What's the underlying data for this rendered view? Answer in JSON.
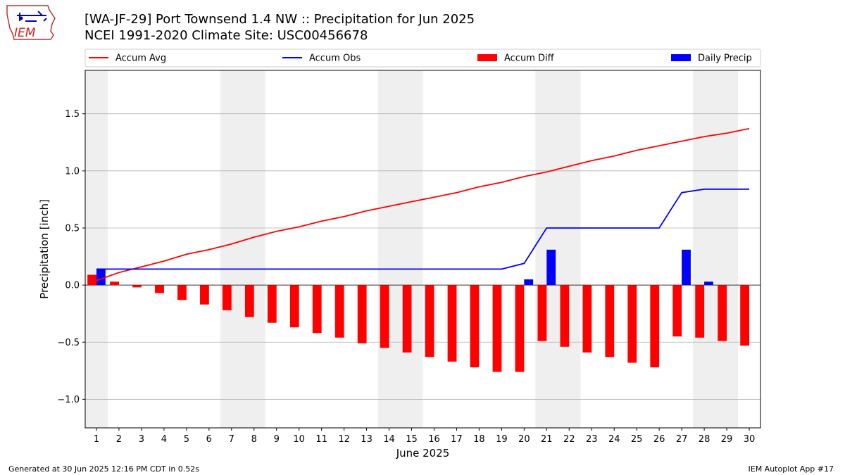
{
  "header": {
    "title_line1": "[WA-JF-29] Port Townsend 1.4 NW :: Precipitation for Jun 2025",
    "title_line2": "NCEI 1991-2020 Climate Site: USC00456678",
    "logo_text": "IEM"
  },
  "footer": {
    "left": "Generated at 30 Jun 2025 12:16 PM CDT in 0.52s",
    "right": "IEM Autoplot App #17"
  },
  "colors": {
    "avg": "#ff0000",
    "obs": "#0000ff",
    "diff": "#ff0000",
    "daily": "#0000ff",
    "weekend_band": "#efefef",
    "grid": "#b0b0b0"
  },
  "chart_data": {
    "type": "bar",
    "xlabel": "June 2025",
    "ylabel": "Precipitation [inch]",
    "xlim": [
      0.5,
      30.5
    ],
    "ylim": [
      -1.25,
      1.88
    ],
    "yticks": [
      -1.0,
      -0.5,
      0.0,
      0.5,
      1.0,
      1.5
    ],
    "ytick_labels": [
      "−1.0",
      "−0.5",
      "0.0",
      "0.5",
      "1.0",
      "1.5"
    ],
    "grid": "horizontal",
    "legend_placement": "top",
    "days": [
      1,
      2,
      3,
      4,
      5,
      6,
      7,
      8,
      9,
      10,
      11,
      12,
      13,
      14,
      15,
      16,
      17,
      18,
      19,
      20,
      21,
      22,
      23,
      24,
      25,
      26,
      27,
      28,
      29,
      30
    ],
    "weekend_bands": [
      [
        1,
        1
      ],
      [
        7,
        8
      ],
      [
        14,
        15
      ],
      [
        21,
        22
      ],
      [
        28,
        29
      ]
    ],
    "series": [
      {
        "name": "Accum Avg",
        "kind": "line",
        "values": [
          0.04,
          0.11,
          0.16,
          0.21,
          0.27,
          0.31,
          0.36,
          0.42,
          0.47,
          0.51,
          0.56,
          0.6,
          0.65,
          0.69,
          0.73,
          0.77,
          0.81,
          0.86,
          0.9,
          0.95,
          0.99,
          1.04,
          1.09,
          1.13,
          1.18,
          1.22,
          1.26,
          1.3,
          1.33,
          1.37
        ]
      },
      {
        "name": "Accum Obs",
        "kind": "line",
        "values": [
          0.14,
          0.14,
          0.14,
          0.14,
          0.14,
          0.14,
          0.14,
          0.14,
          0.14,
          0.14,
          0.14,
          0.14,
          0.14,
          0.14,
          0.14,
          0.14,
          0.14,
          0.14,
          0.14,
          0.19,
          0.5,
          0.5,
          0.5,
          0.5,
          0.5,
          0.5,
          0.81,
          0.84,
          0.84,
          0.84
        ]
      },
      {
        "name": "Accum Diff",
        "kind": "bar",
        "values": [
          0.09,
          0.03,
          -0.02,
          -0.07,
          -0.13,
          -0.17,
          -0.22,
          -0.28,
          -0.33,
          -0.37,
          -0.42,
          -0.46,
          -0.51,
          -0.55,
          -0.59,
          -0.63,
          -0.67,
          -0.72,
          -0.76,
          -0.76,
          -0.49,
          -0.54,
          -0.59,
          -0.63,
          -0.68,
          -0.72,
          -0.45,
          -0.46,
          -0.49,
          -0.53
        ]
      },
      {
        "name": "Daily Precip",
        "kind": "bar",
        "values": [
          0.14,
          0,
          0,
          0,
          0,
          0,
          0,
          0,
          0,
          0,
          0,
          0,
          0,
          0,
          0,
          0,
          0,
          0,
          0,
          0.05,
          0.31,
          0,
          0,
          0,
          0,
          0,
          0.31,
          0.03,
          0,
          0
        ]
      }
    ]
  }
}
